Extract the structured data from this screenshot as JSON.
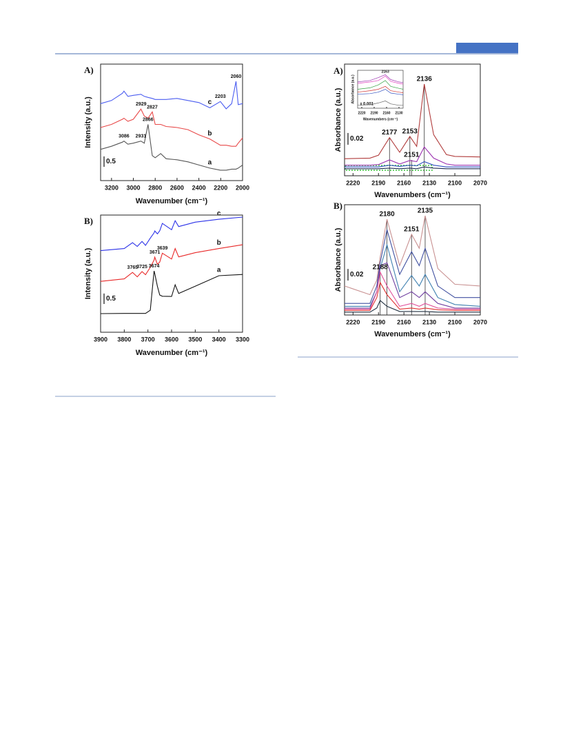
{
  "chart_data": [
    {
      "type": "line",
      "panel_label": "A)",
      "xlabel": "Wavenumber (cm⁻¹)",
      "ylabel": "Intensity (a.u.)",
      "xlim": [
        3300,
        2000
      ],
      "xticks": [
        3200,
        3000,
        2800,
        2600,
        2400,
        2200,
        2000
      ],
      "ylim": [
        0,
        5.6
      ],
      "scale_bar": 0.5,
      "x": [
        3300,
        3200,
        3100,
        3086,
        3050,
        3000,
        2931,
        2900,
        2866,
        2827,
        2800,
        2750,
        2700,
        2600,
        2500,
        2400,
        2300,
        2203,
        2150,
        2100,
        2060,
        2040,
        2000
      ],
      "series": [
        {
          "name": "a",
          "color": "#555555",
          "values": [
            1.5,
            1.65,
            1.85,
            1.9,
            1.75,
            1.8,
            1.9,
            1.8,
            2.7,
            1.2,
            1.1,
            1.3,
            1.05,
            1.0,
            0.9,
            0.75,
            0.6,
            0.5,
            0.5,
            0.55,
            0.55,
            0.6,
            0.75
          ]
        },
        {
          "name": "b",
          "color": "#e84848",
          "values": [
            2.55,
            2.7,
            2.95,
            3.0,
            2.85,
            2.95,
            3.44,
            3.1,
            3.0,
            3.3,
            2.7,
            2.7,
            2.6,
            2.55,
            2.45,
            2.2,
            2.0,
            1.7,
            1.7,
            1.65,
            1.65,
            1.8,
            2.05
          ]
        },
        {
          "name": "c",
          "color": "#4a5cf0",
          "values": [
            3.7,
            3.85,
            4.2,
            4.3,
            4.05,
            4.1,
            4.15,
            4.05,
            4.0,
            3.95,
            3.9,
            3.9,
            3.9,
            3.95,
            3.85,
            3.75,
            3.5,
            3.8,
            3.45,
            3.7,
            4.77,
            3.65,
            3.7
          ]
        }
      ],
      "annotations": [
        {
          "x": 3086,
          "y": 1.9
        },
        {
          "x": 2931,
          "y": 1.9
        },
        {
          "x": 2866,
          "y": 2.7
        },
        {
          "x": 2929,
          "y": 3.44
        },
        {
          "x": 2827,
          "y": 3.3
        },
        {
          "x": 2203,
          "y": 3.8
        },
        {
          "x": 2060,
          "y": 4.77
        }
      ]
    },
    {
      "type": "line",
      "panel_label": "B)",
      "xlabel": "Wavenumber (cm⁻¹)",
      "ylabel": "Intensity (a.u.)",
      "xlim": [
        3900,
        3300
      ],
      "xticks": [
        3900,
        3800,
        3700,
        3600,
        3500,
        3400,
        3300
      ],
      "ylim": [
        0,
        5.6
      ],
      "scale_bar": 0.5,
      "x": [
        3900,
        3800,
        3765,
        3745,
        3725,
        3710,
        3690,
        3674,
        3671,
        3660,
        3650,
        3639,
        3600,
        3585,
        3570,
        3500,
        3400,
        3300
      ],
      "series": [
        {
          "name": "a",
          "color": "#111111",
          "values": [
            0.89,
            0.9,
            0.9,
            0.9,
            0.9,
            0.9,
            1.05,
            2.93,
            2.8,
            2.2,
            1.78,
            1.72,
            1.71,
            2.27,
            1.85,
            2.2,
            2.7,
            2.76
          ]
        },
        {
          "name": "b",
          "color": "#e82828",
          "values": [
            2.43,
            2.55,
            2.86,
            2.65,
            2.9,
            2.75,
            3.1,
            3.45,
            3.59,
            3.25,
            3.35,
            3.78,
            3.5,
            4.0,
            3.6,
            3.8,
            4.0,
            4.18
          ]
        },
        {
          "name": "c",
          "color": "#2a30e8",
          "values": [
            3.9,
            4.0,
            4.28,
            4.1,
            4.34,
            4.15,
            4.5,
            4.75,
            4.84,
            4.7,
            4.85,
            5.2,
            4.9,
            5.33,
            5.05,
            5.26,
            5.4,
            5.5
          ]
        }
      ],
      "annotations": [
        {
          "x": 3765,
          "y": 2.86
        },
        {
          "x": 3725,
          "y": 2.9
        },
        {
          "x": 3674,
          "y": 2.93
        },
        {
          "x": 3671,
          "y": 3.59
        },
        {
          "x": 3639,
          "y": 3.78
        }
      ]
    },
    {
      "type": "line",
      "panel_label": "A)",
      "xlabel": "Wavenumbers (cm⁻¹)",
      "ylabel": "Absorbance (a.u.)",
      "xlim": [
        2230,
        2070
      ],
      "xticks": [
        2220,
        2190,
        2160,
        2130,
        2100,
        2070
      ],
      "ylim": [
        0,
        0.19
      ],
      "scale_bar": 0.02,
      "droplines": true,
      "x": [
        2230,
        2200,
        2190,
        2177,
        2165,
        2153,
        2145,
        2136,
        2125,
        2110,
        2100,
        2070
      ],
      "series": [
        {
          "color": "#b03a3a",
          "values": [
            0.029,
            0.03,
            0.035,
            0.065,
            0.04,
            0.067,
            0.05,
            0.156,
            0.07,
            0.036,
            0.033,
            0.032
          ]
        },
        {
          "color": "#9b30b0",
          "values": [
            0.018,
            0.018,
            0.019,
            0.027,
            0.02,
            0.026,
            0.024,
            0.049,
            0.03,
            0.02,
            0.018,
            0.018
          ]
        },
        {
          "color": "#3050c0",
          "values": [
            0.015,
            0.015,
            0.015,
            0.018,
            0.016,
            0.018,
            0.017,
            0.024,
            0.018,
            0.015,
            0.015,
            0.015
          ]
        },
        {
          "color": "#1a2a50",
          "values": [
            0.012,
            0.012,
            0.012,
            0.013,
            0.012,
            0.013,
            0.012,
            0.015,
            0.013,
            0.012,
            0.012,
            0.012
          ]
        }
      ],
      "annotations": [
        {
          "x": 2177,
          "y": 0.065
        },
        {
          "x": 2153,
          "y": 0.067
        },
        {
          "x": 2136,
          "y": 0.156
        },
        {
          "x": 2151,
          "y": 0.027
        }
      ]
    },
    {
      "type": "line",
      "xlabel": "Wavenumbers (cm⁻¹)",
      "ylabel": "Absorbance (a.u.)",
      "xlim": [
        2230,
        2120
      ],
      "xticks": [
        2220,
        2190,
        2160,
        2130
      ],
      "ylim": [
        0,
        0.013
      ],
      "scale_bar": 0.001,
      "x": [
        2230,
        2200,
        2180,
        2163,
        2150,
        2130,
        2120
      ],
      "series": [
        {
          "color": "#9b30b0",
          "values": [
            0.009,
            0.0095,
            0.0105,
            0.0115,
            0.0098,
            0.009,
            0.0088
          ]
        },
        {
          "color": "#e040c0",
          "values": [
            0.0085,
            0.009,
            0.0095,
            0.011,
            0.0092,
            0.0085,
            0.0083
          ]
        },
        {
          "color": "#30a040",
          "values": [
            0.0065,
            0.007,
            0.008,
            0.0095,
            0.0075,
            0.0068,
            0.0065
          ]
        },
        {
          "color": "#d03030",
          "values": [
            0.0055,
            0.006,
            0.0065,
            0.0075,
            0.006,
            0.0055,
            0.0053
          ]
        },
        {
          "color": "#3050c0",
          "values": [
            0.0048,
            0.005,
            0.0055,
            0.0065,
            0.0052,
            0.0048,
            0.0046
          ]
        },
        {
          "color": "#666666",
          "values": [
            0.001,
            0.0012,
            0.0018,
            0.0025,
            0.0015,
            0.001,
            0.001
          ]
        }
      ],
      "annotations": [
        {
          "x": 2163,
          "y": 0.0115
        }
      ]
    },
    {
      "type": "line",
      "panel_label": "B)",
      "xlabel": "Wavenumbers (cm⁻¹)",
      "ylabel": "Absorbance (a.u.)",
      "xlim": [
        2230,
        2070
      ],
      "xticks": [
        2220,
        2190,
        2160,
        2130,
        2100,
        2070
      ],
      "ylim": [
        0,
        0.19
      ],
      "scale_bar": 0.02,
      "droplines": true,
      "x": [
        2230,
        2200,
        2192,
        2188,
        2180,
        2165,
        2151,
        2142,
        2135,
        2120,
        2100,
        2070
      ],
      "series": [
        {
          "color": "#c89090",
          "values": [
            0.05,
            0.035,
            0.06,
            0.1,
            0.165,
            0.085,
            0.139,
            0.115,
            0.171,
            0.08,
            0.053,
            0.05
          ]
        },
        {
          "color": "#4050a0",
          "values": [
            0.02,
            0.02,
            0.05,
            0.09,
            0.147,
            0.07,
            0.109,
            0.085,
            0.115,
            0.05,
            0.03,
            0.03
          ]
        },
        {
          "color": "#3f80b0",
          "values": [
            0.015,
            0.015,
            0.04,
            0.08,
            0.121,
            0.04,
            0.068,
            0.05,
            0.07,
            0.03,
            0.018,
            0.015
          ]
        },
        {
          "color": "#7040a0",
          "values": [
            0.012,
            0.012,
            0.04,
            0.085,
            0.09,
            0.03,
            0.04,
            0.03,
            0.04,
            0.02,
            0.012,
            0.012
          ]
        },
        {
          "color": "#e0509a",
          "values": [
            0.01,
            0.01,
            0.04,
            0.074,
            0.05,
            0.015,
            0.02,
            0.015,
            0.02,
            0.012,
            0.01,
            0.01
          ]
        },
        {
          "color": "#e03030",
          "values": [
            0.008,
            0.008,
            0.03,
            0.056,
            0.035,
            0.01,
            0.012,
            0.01,
            0.012,
            0.009,
            0.008,
            0.008
          ]
        },
        {
          "color": "#203040",
          "values": [
            0.005,
            0.005,
            0.012,
            0.025,
            0.015,
            0.006,
            0.006,
            0.006,
            0.006,
            0.005,
            0.005,
            0.005
          ]
        }
      ],
      "annotations": [
        {
          "x": 2180,
          "y": 0.165
        },
        {
          "x": 2151,
          "y": 0.139
        },
        {
          "x": 2135,
          "y": 0.171
        },
        {
          "x": 2188,
          "y": 0.074
        }
      ]
    }
  ]
}
